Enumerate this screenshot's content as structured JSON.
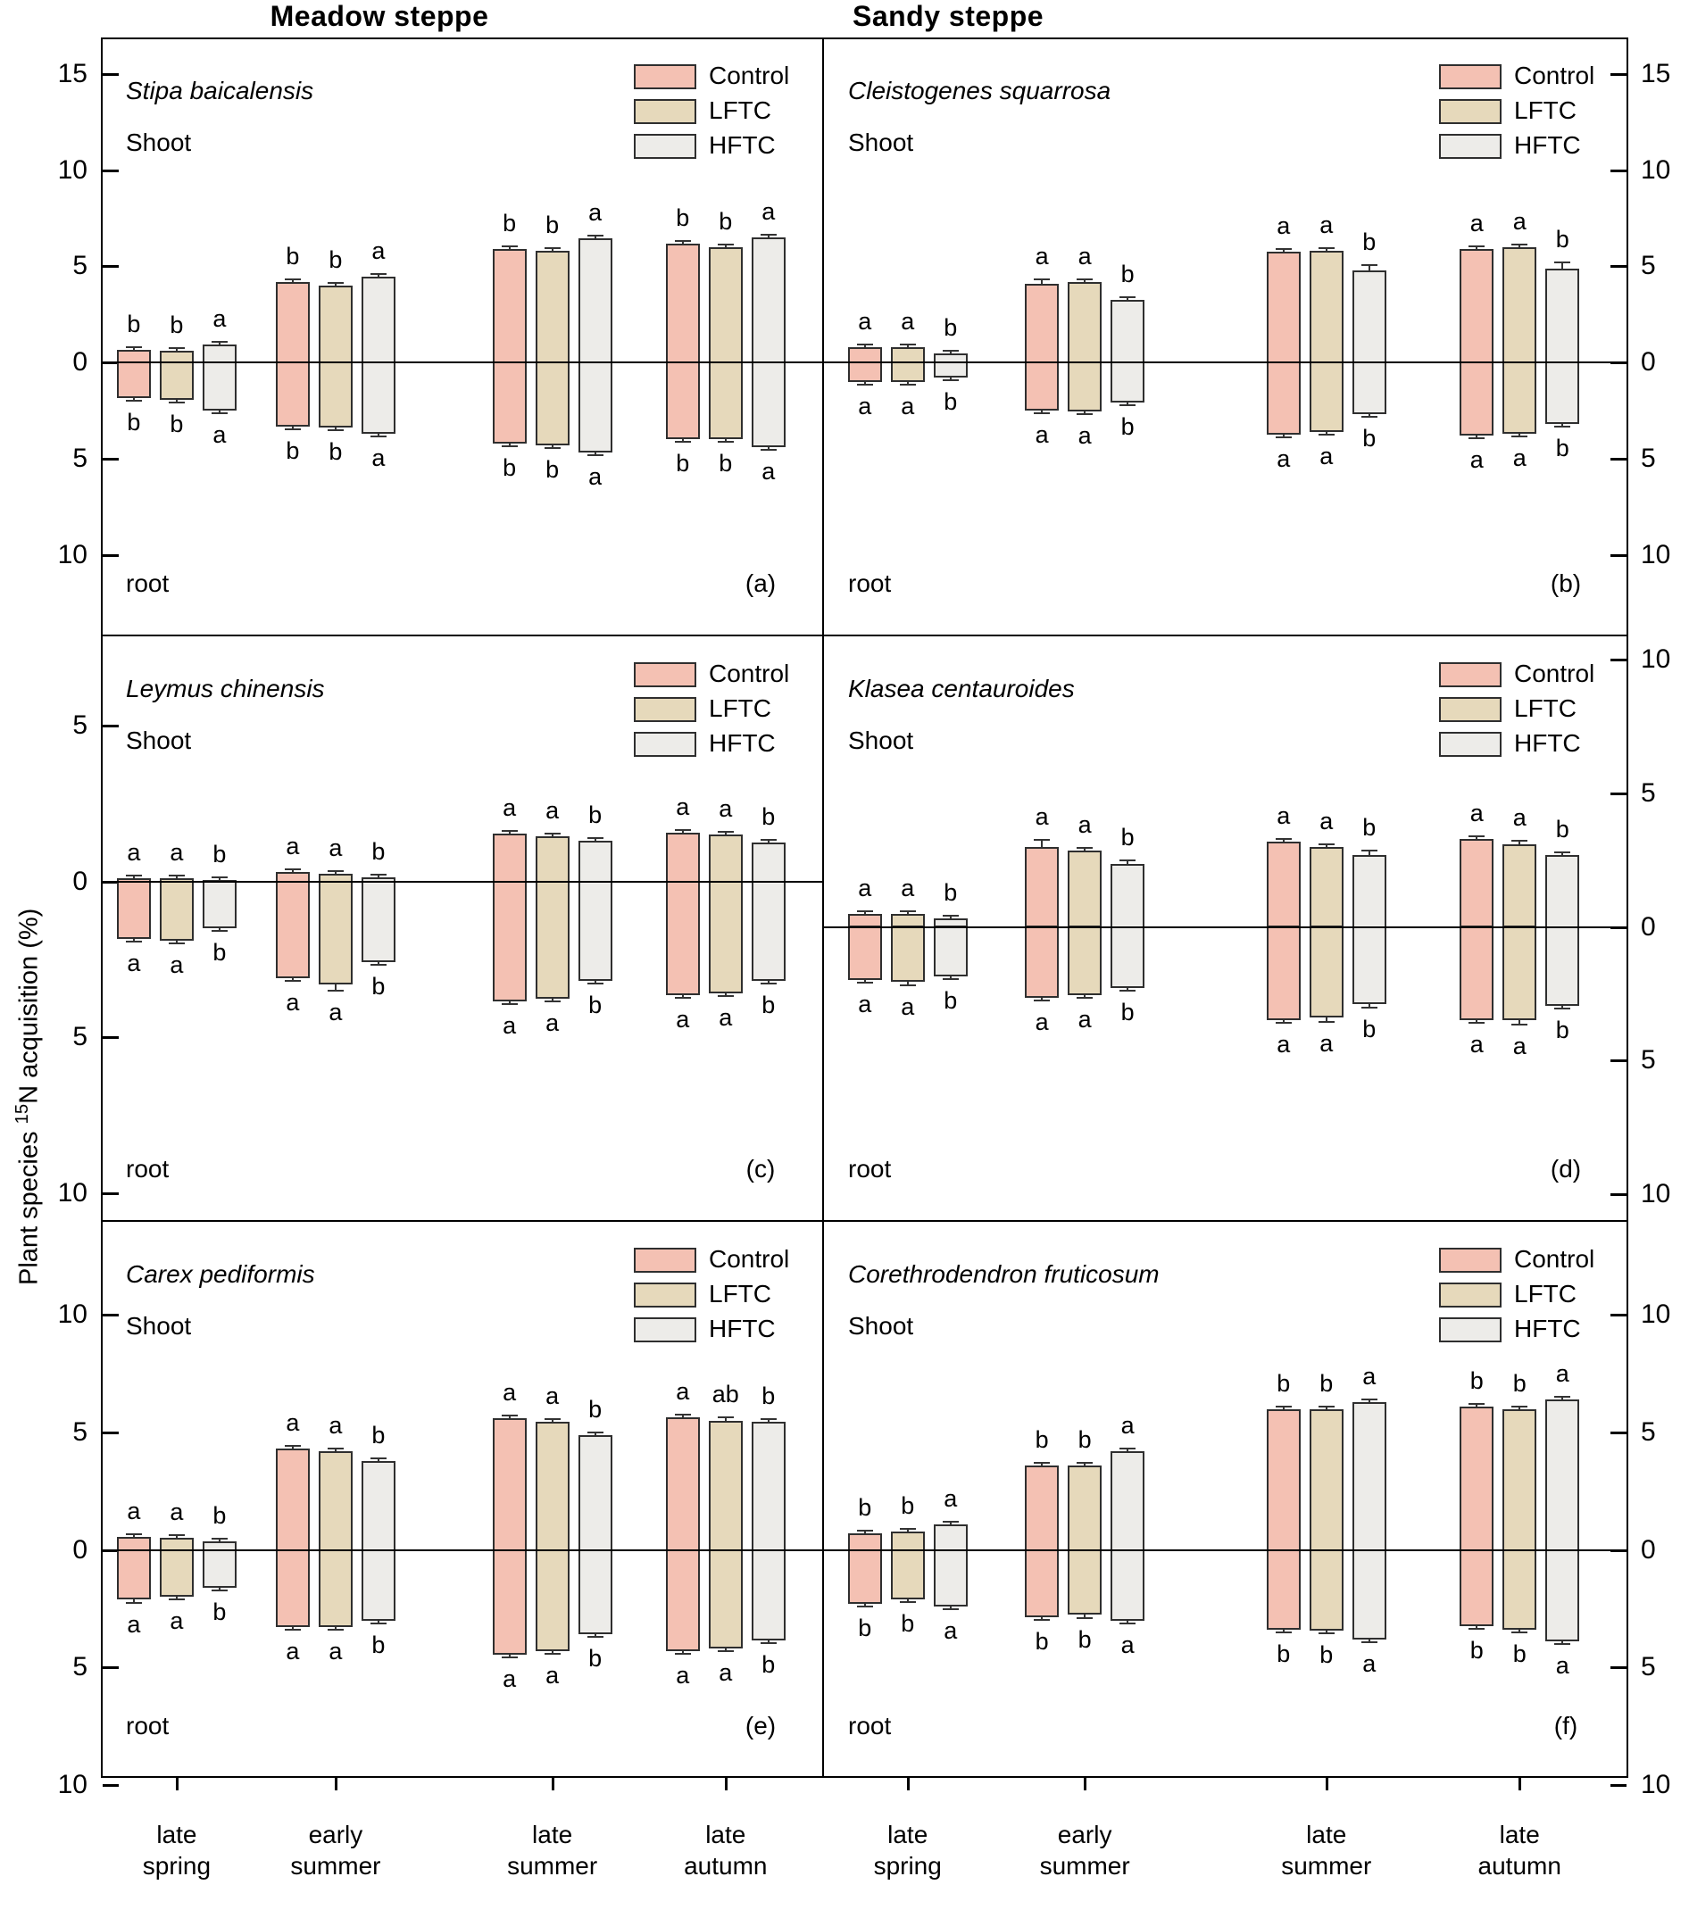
{
  "figure": {
    "titles": {
      "left": "Meadow steppe",
      "right": "Sandy steppe"
    },
    "y_axis_label": {
      "prefix": "Plant species ",
      "superscript": "15",
      "suffix": "N acquisition (%)"
    },
    "shoot_label": "Shoot",
    "root_label": "root",
    "x_tick_labels": [
      [
        "late",
        "spring"
      ],
      [
        "early",
        "summer"
      ],
      [
        "late",
        "summer"
      ],
      [
        "late",
        "autumn"
      ]
    ],
    "legend_items": [
      {
        "key": "control",
        "label": "Control",
        "color": "#F4C1B3"
      },
      {
        "key": "lftc",
        "label": "LFTC",
        "color": "#E6D9BB"
      },
      {
        "key": "hftc",
        "label": "HFTC",
        "color": "#EDECE9"
      }
    ],
    "colors": {
      "bar_border": "#2f2f2f",
      "axis": "#000000",
      "error": "#333333",
      "background": "#ffffff"
    }
  },
  "chart_data": [
    {
      "id": "a",
      "panel_label": "(a)",
      "region": "Meadow steppe",
      "species": "Stipa baicalensis",
      "type": "bar",
      "column": "left",
      "row": 0,
      "categories": [
        "late spring",
        "early summer",
        "late summer",
        "late autumn"
      ],
      "ylim": [
        -14.2,
        16.9
      ],
      "yticks": [
        15,
        10,
        5,
        0,
        -5,
        -10
      ],
      "tick_side": "left",
      "shoot": {
        "series": [
          {
            "name": "Control",
            "values": [
              0.65,
              4.2,
              5.9,
              6.2
            ],
            "err": [
              0.06,
              0.08,
              0.06,
              0.06
            ]
          },
          {
            "name": "LFTC",
            "values": [
              0.6,
              4.0,
              5.8,
              6.0
            ],
            "err": [
              0.06,
              0.08,
              0.12,
              0.1
            ]
          },
          {
            "name": "HFTC",
            "values": [
              0.95,
              4.45,
              6.45,
              6.5
            ],
            "err": [
              0.06,
              0.06,
              0.06,
              0.06
            ]
          }
        ],
        "letters": [
          [
            "b",
            "b",
            "a"
          ],
          [
            "b",
            "b",
            "a"
          ],
          [
            "b",
            "b",
            "a"
          ],
          [
            "b",
            "b",
            "a"
          ]
        ]
      },
      "root": {
        "series": [
          {
            "name": "Control",
            "values": [
              1.85,
              3.35,
              4.2,
              4.0
            ],
            "err": [
              0.1,
              0.08,
              0.1,
              0.12
            ]
          },
          {
            "name": "LFTC",
            "values": [
              1.95,
              3.4,
              4.3,
              4.0
            ],
            "err": [
              0.12,
              0.08,
              0.1,
              0.12
            ]
          },
          {
            "name": "HFTC",
            "values": [
              2.5,
              3.7,
              4.7,
              4.4
            ],
            "err": [
              0.1,
              0.1,
              0.1,
              0.08
            ]
          }
        ],
        "letters": [
          [
            "b",
            "b",
            "a"
          ],
          [
            "b",
            "b",
            "a"
          ],
          [
            "b",
            "b",
            "a"
          ],
          [
            "b",
            "b",
            "a"
          ]
        ]
      }
    },
    {
      "id": "b",
      "panel_label": "(b)",
      "region": "Sandy steppe",
      "species": "Cleistogenes squarrosa",
      "type": "bar",
      "column": "right",
      "row": 0,
      "categories": [
        "late spring",
        "early summer",
        "late summer",
        "late autumn"
      ],
      "ylim": [
        -14.2,
        16.9
      ],
      "yticks": [
        15,
        10,
        5,
        0,
        -5,
        -10
      ],
      "tick_side": "right",
      "shoot": {
        "series": [
          {
            "name": "Control",
            "values": [
              0.8,
              4.1,
              5.75,
              5.9
            ],
            "err": [
              0.06,
              0.2,
              0.06,
              0.08
            ]
          },
          {
            "name": "LFTC",
            "values": [
              0.8,
              4.2,
              5.8,
              6.0
            ],
            "err": [
              0.06,
              0.1,
              0.1,
              0.08
            ]
          },
          {
            "name": "HFTC",
            "values": [
              0.45,
              3.25,
              4.8,
              4.9
            ],
            "err": [
              0.06,
              0.15,
              0.25,
              0.3
            ]
          }
        ],
        "letters": [
          [
            "a",
            "a",
            "b"
          ],
          [
            "a",
            "a",
            "b"
          ],
          [
            "a",
            "a",
            "b"
          ],
          [
            "a",
            "a",
            "b"
          ]
        ]
      },
      "root": {
        "series": [
          {
            "name": "Control",
            "values": [
              1.0,
              2.5,
              3.75,
              3.8
            ],
            "err": [
              0.08,
              0.08,
              0.1,
              0.1
            ]
          },
          {
            "name": "LFTC",
            "values": [
              1.0,
              2.55,
              3.6,
              3.7
            ],
            "err": [
              0.08,
              0.08,
              0.08,
              0.1
            ]
          },
          {
            "name": "HFTC",
            "values": [
              0.8,
              2.1,
              2.7,
              3.2
            ],
            "err": [
              0.08,
              0.08,
              0.12,
              0.1
            ]
          }
        ],
        "letters": [
          [
            "a",
            "a",
            "b"
          ],
          [
            "a",
            "a",
            "b"
          ],
          [
            "a",
            "a",
            "b"
          ],
          [
            "a",
            "a",
            "b"
          ]
        ]
      }
    },
    {
      "id": "c",
      "panel_label": "(c)",
      "region": "Meadow steppe",
      "species": "Leymus chinensis",
      "type": "bar",
      "column": "left",
      "row": 1,
      "categories": [
        "late spring",
        "early summer",
        "late summer",
        "late autumn"
      ],
      "ylim": [
        -10.9,
        7.9
      ],
      "yticks": [
        5,
        0,
        -5,
        -10
      ],
      "tick_side": "left",
      "shoot": {
        "series": [
          {
            "name": "Control",
            "values": [
              0.1,
              0.3,
              1.55,
              1.57
            ],
            "err": [
              0.04,
              0.05,
              0.05,
              0.05
            ]
          },
          {
            "name": "LFTC",
            "values": [
              0.1,
              0.25,
              1.45,
              1.5
            ],
            "err": [
              0.04,
              0.05,
              0.05,
              0.05
            ]
          },
          {
            "name": "HFTC",
            "values": [
              0.05,
              0.12,
              1.3,
              1.26
            ],
            "err": [
              0.04,
              0.05,
              0.05,
              0.06
            ]
          }
        ],
        "letters": [
          [
            "a",
            "a",
            "b"
          ],
          [
            "a",
            "a",
            "b"
          ],
          [
            "a",
            "a",
            "b"
          ],
          [
            "a",
            "a",
            "b"
          ]
        ]
      },
      "root": {
        "series": [
          {
            "name": "Control",
            "values": [
              1.85,
              3.1,
              3.85,
              3.65
            ],
            "err": [
              0.08,
              0.08,
              0.08,
              0.08
            ]
          },
          {
            "name": "LFTC",
            "values": [
              1.9,
              3.3,
              3.75,
              3.6
            ],
            "err": [
              0.1,
              0.2,
              0.08,
              0.08
            ]
          },
          {
            "name": "HFTC",
            "values": [
              1.5,
              2.6,
              3.2,
              3.2
            ],
            "err": [
              0.08,
              0.08,
              0.08,
              0.08
            ]
          }
        ],
        "letters": [
          [
            "a",
            "a",
            "b"
          ],
          [
            "a",
            "a",
            "b"
          ],
          [
            "a",
            "a",
            "b"
          ],
          [
            "a",
            "a",
            "b"
          ]
        ]
      }
    },
    {
      "id": "d",
      "panel_label": "(d)",
      "region": "Sandy steppe",
      "species": "Klasea centauroides",
      "type": "bar",
      "column": "right",
      "row": 1,
      "categories": [
        "late spring",
        "early summer",
        "late summer",
        "late autumn"
      ],
      "ylim": [
        -11.0,
        10.9
      ],
      "yticks": [
        10,
        5,
        0,
        -5,
        -10
      ],
      "tick_side": "right",
      "shoot": {
        "series": [
          {
            "name": "Control",
            "values": [
              0.5,
              3.0,
              3.2,
              3.3
            ],
            "err": [
              0.06,
              0.25,
              0.08,
              0.1
            ]
          },
          {
            "name": "LFTC",
            "values": [
              0.5,
              2.85,
              3.0,
              3.1
            ],
            "err": [
              0.06,
              0.1,
              0.08,
              0.12
            ]
          },
          {
            "name": "HFTC",
            "values": [
              0.33,
              2.35,
              2.7,
              2.7
            ],
            "err": [
              0.05,
              0.15,
              0.15,
              0.1
            ]
          }
        ],
        "letters": [
          [
            "a",
            "a",
            "b"
          ],
          [
            "a",
            "a",
            "b"
          ],
          [
            "a",
            "a",
            "b"
          ],
          [
            "a",
            "a",
            "b"
          ]
        ]
      },
      "root": {
        "series": [
          {
            "name": "Control",
            "values": [
              2.0,
              2.65,
              3.5,
              3.5
            ],
            "err": [
              0.1,
              0.08,
              0.1,
              0.1
            ]
          },
          {
            "name": "LFTC",
            "values": [
              2.05,
              2.55,
              3.4,
              3.5
            ],
            "err": [
              0.12,
              0.1,
              0.15,
              0.15
            ]
          },
          {
            "name": "HFTC",
            "values": [
              1.85,
              2.3,
              2.9,
              2.95
            ],
            "err": [
              0.1,
              0.1,
              0.12,
              0.1
            ]
          }
        ],
        "letters": [
          [
            "a",
            "a",
            "b"
          ],
          [
            "a",
            "a",
            "b"
          ],
          [
            "a",
            "a",
            "b"
          ],
          [
            "a",
            "a",
            "b"
          ]
        ]
      }
    },
    {
      "id": "e",
      "panel_label": "(e)",
      "region": "Meadow steppe",
      "species": "Carex pediformis",
      "type": "bar",
      "column": "left",
      "row": 2,
      "categories": [
        "late spring",
        "early summer",
        "late summer",
        "late autumn"
      ],
      "ylim": [
        -9.7,
        14.0
      ],
      "yticks": [
        10,
        5,
        0,
        -5,
        -10
      ],
      "tick_side": "left",
      "shoot": {
        "series": [
          {
            "name": "Control",
            "values": [
              0.55,
              4.3,
              5.6,
              5.65
            ],
            "err": [
              0.06,
              0.08,
              0.06,
              0.06
            ]
          },
          {
            "name": "LFTC",
            "values": [
              0.5,
              4.2,
              5.45,
              5.5
            ],
            "err": [
              0.06,
              0.06,
              0.06,
              0.15
            ]
          },
          {
            "name": "HFTC",
            "values": [
              0.35,
              3.8,
              4.9,
              5.45
            ],
            "err": [
              0.06,
              0.1,
              0.08,
              0.08
            ]
          }
        ],
        "letters": [
          [
            "a",
            "a",
            "b"
          ],
          [
            "a",
            "a",
            "b"
          ],
          [
            "a",
            "a",
            "b"
          ],
          [
            "a",
            "ab",
            "b"
          ]
        ]
      },
      "root": {
        "series": [
          {
            "name": "Control",
            "values": [
              2.1,
              3.3,
              4.45,
              4.3
            ],
            "err": [
              0.15,
              0.08,
              0.08,
              0.08
            ]
          },
          {
            "name": "LFTC",
            "values": [
              2.0,
              3.3,
              4.3,
              4.2
            ],
            "err": [
              0.1,
              0.08,
              0.08,
              0.08
            ]
          },
          {
            "name": "HFTC",
            "values": [
              1.6,
              3.0,
              3.6,
              3.85
            ],
            "err": [
              0.1,
              0.08,
              0.08,
              0.08
            ]
          }
        ],
        "letters": [
          [
            "a",
            "a",
            "b"
          ],
          [
            "a",
            "a",
            "b"
          ],
          [
            "a",
            "a",
            "b"
          ],
          [
            "a",
            "a",
            "b"
          ]
        ]
      }
    },
    {
      "id": "f",
      "panel_label": "(f)",
      "region": "Sandy steppe",
      "species": "Corethrodendron fruticosum",
      "type": "bar",
      "column": "right",
      "row": 2,
      "categories": [
        "late spring",
        "early summer",
        "late summer",
        "late autumn"
      ],
      "ylim": [
        -9.7,
        14.0
      ],
      "yticks": [
        10,
        5,
        0,
        -5,
        -10
      ],
      "tick_side": "right",
      "shoot": {
        "series": [
          {
            "name": "Control",
            "values": [
              0.7,
              3.6,
              6.0,
              6.1
            ],
            "err": [
              0.06,
              0.08,
              0.08,
              0.06
            ]
          },
          {
            "name": "LFTC",
            "values": [
              0.8,
              3.6,
              6.0,
              6.0
            ],
            "err": [
              0.06,
              0.1,
              0.08,
              0.06
            ]
          },
          {
            "name": "HFTC",
            "values": [
              1.1,
              4.2,
              6.3,
              6.4
            ],
            "err": [
              0.06,
              0.08,
              0.06,
              0.06
            ]
          }
        ],
        "letters": [
          [
            "b",
            "b",
            "a"
          ],
          [
            "b",
            "b",
            "a"
          ],
          [
            "b",
            "b",
            "a"
          ],
          [
            "b",
            "b",
            "a"
          ]
        ]
      },
      "root": {
        "series": [
          {
            "name": "Control",
            "values": [
              2.3,
              2.85,
              3.4,
              3.25
            ],
            "err": [
              0.1,
              0.08,
              0.1,
              0.08
            ]
          },
          {
            "name": "LFTC",
            "values": [
              2.1,
              2.75,
              3.45,
              3.4
            ],
            "err": [
              0.08,
              0.15,
              0.08,
              0.1
            ]
          },
          {
            "name": "HFTC",
            "values": [
              2.4,
              3.0,
              3.8,
              3.9
            ],
            "err": [
              0.1,
              0.12,
              0.08,
              0.08
            ]
          }
        ],
        "letters": [
          [
            "b",
            "b",
            "a"
          ],
          [
            "b",
            "b",
            "a"
          ],
          [
            "b",
            "b",
            "a"
          ],
          [
            "b",
            "b",
            "a"
          ]
        ]
      }
    }
  ]
}
